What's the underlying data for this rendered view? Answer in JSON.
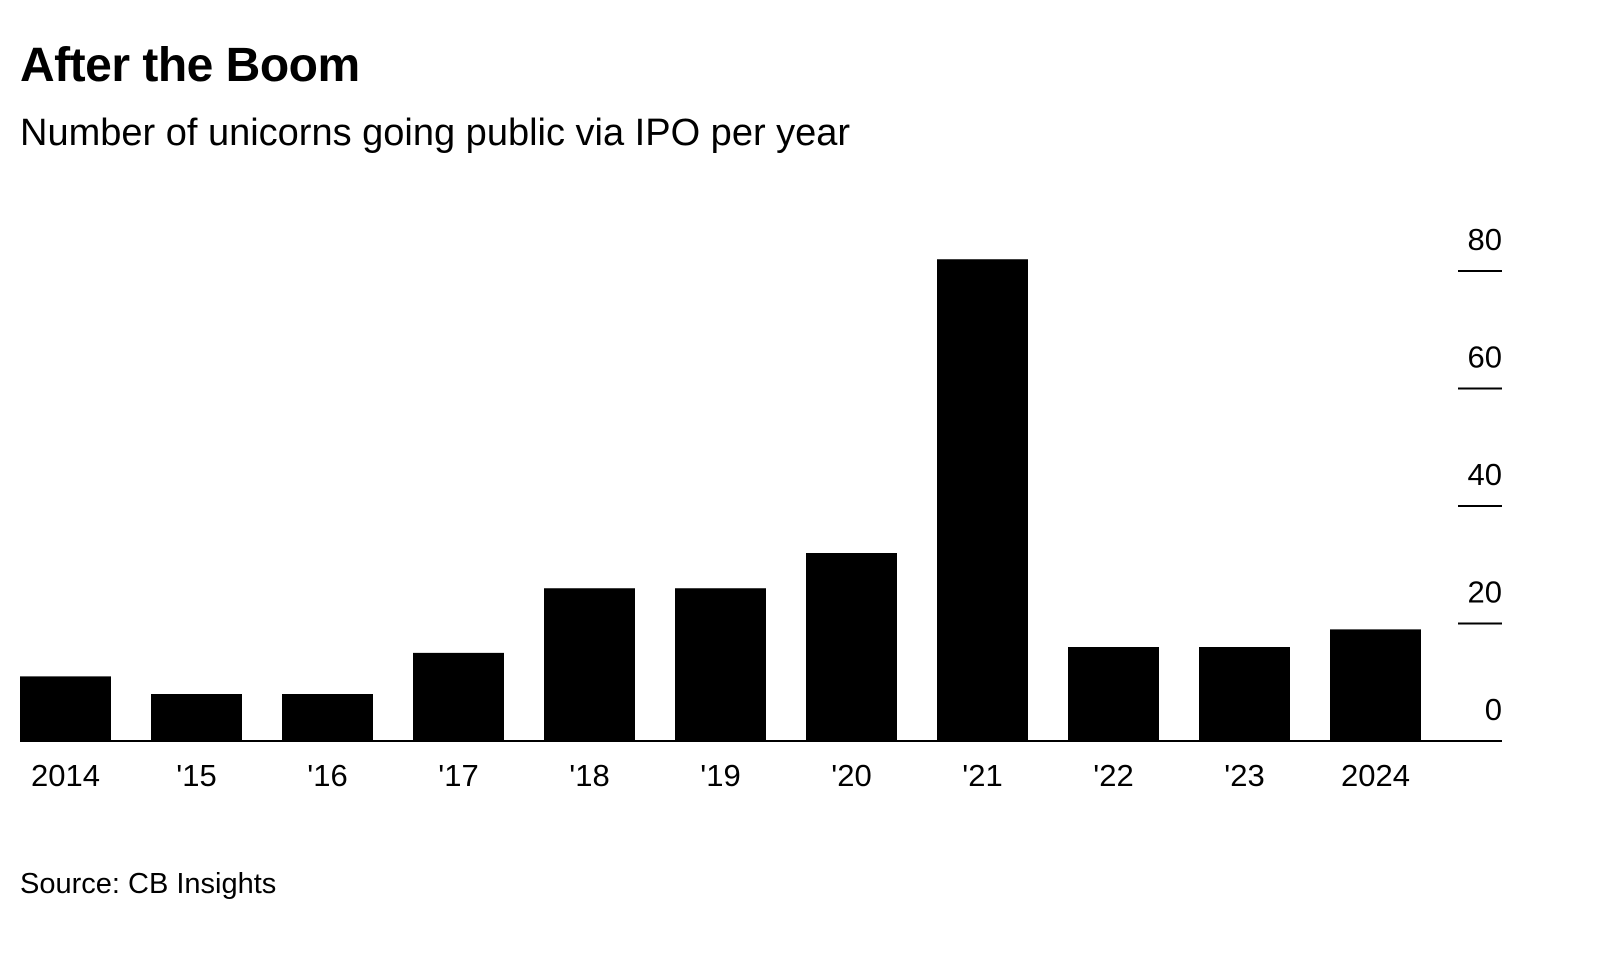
{
  "chart_data": {
    "type": "bar",
    "title": "After the Boom",
    "subtitle": "Number of unicorns going public via IPO per year",
    "source": "Source: CB Insights",
    "categories": [
      "2014",
      "'15",
      "'16",
      "'17",
      "'18",
      "'19",
      "'20",
      "'21",
      "'22",
      "'23",
      "2024"
    ],
    "values": [
      11,
      8,
      8,
      15,
      26,
      26,
      32,
      82,
      16,
      16,
      19
    ],
    "ylim": [
      0,
      80
    ],
    "yticks": [
      0,
      20,
      40,
      60,
      80
    ],
    "ytick_labels": [
      "0",
      "20",
      "40",
      "60",
      "80"
    ],
    "yaxis_position": "right",
    "grid": false,
    "colors": {
      "bar": "#000000",
      "text": "#000000",
      "background": "#ffffff"
    }
  }
}
